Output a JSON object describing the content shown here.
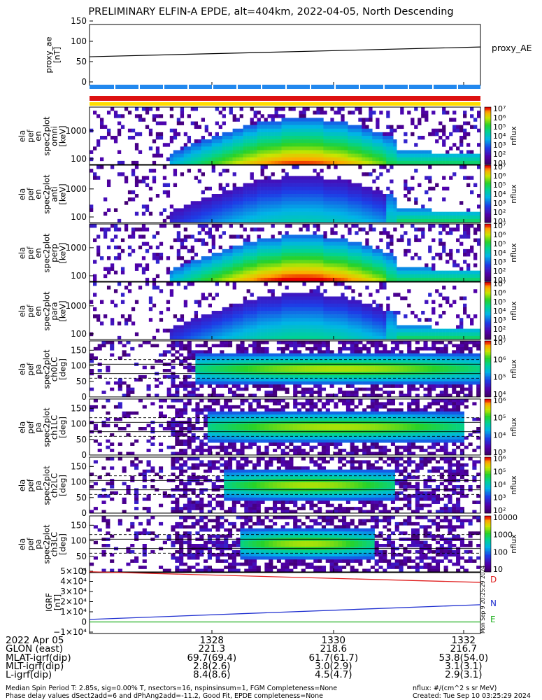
{
  "title": "PRELIMINARY ELFIN-A EPDE, alt=404km, 2022-04-05, North Descending",
  "proxy_panel": {
    "ylabel": [
      "proxy_ae",
      "[nT]"
    ],
    "legend": "proxy_AE",
    "yticks": [
      "150",
      "100",
      "50",
      "0"
    ]
  },
  "spectra_panels": [
    {
      "ylabel": [
        "ela",
        "pef",
        "en",
        "spec2plot",
        "omni",
        "[keV]"
      ],
      "yticks": [
        "1000",
        "100"
      ],
      "cbar_label": "nflux"
    },
    {
      "ylabel": [
        "ela",
        "pef",
        "en",
        "spec2plot",
        "anti",
        "[keV]"
      ],
      "yticks": [
        "1000",
        "100"
      ],
      "cbar_label": "nflux"
    },
    {
      "ylabel": [
        "ela",
        "pef",
        "en",
        "spec2plot",
        "perp",
        "[keV]"
      ],
      "yticks": [
        "1000",
        "100"
      ],
      "cbar_label": "nflux"
    },
    {
      "ylabel": [
        "ela",
        "pef",
        "en",
        "spec2plot",
        "para",
        "[keV]"
      ],
      "yticks": [
        "1000",
        "100"
      ],
      "cbar_label": "nflux"
    }
  ],
  "pa_panels": [
    {
      "ylabel": [
        "ela",
        "pef",
        "pa",
        "spec2plot",
        "ch0LC",
        "[deg]"
      ],
      "yticks": [
        "150",
        "100",
        "50",
        "0"
      ],
      "cbar_label": "nflux"
    },
    {
      "ylabel": [
        "ela",
        "pef",
        "pa",
        "spec2plot",
        "ch1LC",
        "[deg]"
      ],
      "yticks": [
        "150",
        "100",
        "50",
        "0"
      ],
      "cbar_label": "nflux"
    },
    {
      "ylabel": [
        "ela",
        "pef",
        "pa",
        "spec2plot",
        "ch2LC",
        "[deg]"
      ],
      "yticks": [
        "150",
        "100",
        "50",
        "0"
      ],
      "cbar_label": "nflux"
    },
    {
      "ylabel": [
        "ela",
        "pef",
        "pa",
        "spec2plot",
        "ch3LC",
        "[deg]"
      ],
      "yticks": [
        "150",
        "100",
        "50",
        "0"
      ],
      "cbar_label": "nflux"
    }
  ],
  "colorbar_ticks": {
    "spec": [
      "10⁷",
      "10⁶",
      "10⁵",
      "10⁴",
      "10³",
      "10²",
      "10¹"
    ],
    "pa0": [
      "10⁷",
      "10⁶",
      "10⁵",
      "10⁴"
    ],
    "pa1": [
      "10⁶",
      "10⁵",
      "10⁴",
      "10³"
    ],
    "pa2": [
      "10⁶",
      "10⁵",
      "10⁴",
      "10³",
      "10²"
    ],
    "pa3": [
      "10000",
      "1000",
      "100",
      "10"
    ]
  },
  "igrf_panel": {
    "ylabel": [
      "IGRF",
      "[nT]"
    ],
    "yticks": [
      "5×10⁴",
      "4×10⁴",
      "3×10⁴",
      "2×10⁴",
      "1×10⁴",
      "0",
      "−1×10⁴"
    ],
    "legend": [
      {
        "label": "D",
        "color": "#e02020"
      },
      {
        "label": "N",
        "color": "#2030d0"
      },
      {
        "label": "E",
        "color": "#20b020"
      }
    ]
  },
  "xticks": [
    "1328",
    "1330",
    "1332"
  ],
  "ephemeris_table": {
    "labels": [
      "2022 Apr 05",
      "GLON (east)",
      "MLAT-igrf(dip)",
      "MLT-igrf(dip)",
      "L-igrf(dip)"
    ],
    "columns": [
      [
        "1328",
        "221.3",
        "69.7(69.4)",
        "2.8(2.6)",
        "8.4(8.6)"
      ],
      [
        "1330",
        "218.6",
        "61.7(61.7)",
        "3.0(2.9)",
        "4.5(4.7)"
      ],
      [
        "1332",
        "216.7",
        "53.8(54.0)",
        "3.1(3.1)",
        "2.9(3.1)"
      ]
    ]
  },
  "footer": {
    "line1": "Median Spin Period T: 2.85s, sig=0.00% T, nsectors=16, nspinsinsum=1, FGM Completeness=None",
    "line2": "Phase delay values dSect2add=6 and dPhAng2add=-11.2, Good Fit, EPDE completeness=None",
    "right1": "nflux: #/(cm^2 s sr MeV)",
    "right2": "Created: Tue Sep 10 03:25:29 2024"
  },
  "vertical_stamp": "Mon Sep  9 20:25:29 2024",
  "chart_data": {
    "type": "heatmap",
    "title": "PRELIMINARY ELFIN-A EPDE, alt=404km, 2022-04-05, North Descending",
    "x_ticks": [
      "1328",
      "1330",
      "1332"
    ],
    "proxy_ae": {
      "y_range": [
        0,
        150
      ],
      "start": 62,
      "end": 86
    },
    "quality_bars": [
      "#2288ee",
      "#dd1111",
      "#ffdd00"
    ],
    "energy_axis": {
      "range_keV": [
        63,
        7000
      ],
      "scale": "log",
      "ticks": [
        100,
        1000
      ]
    },
    "pitch_angle_axis": {
      "range_deg": [
        0,
        180
      ],
      "ticks": [
        0,
        50,
        100,
        150
      ],
      "dashed_lines": [
        60,
        120
      ],
      "solid_lines": [
        75,
        105
      ]
    },
    "igrf": {
      "y_range": [
        -10000,
        50000
      ],
      "series": [
        {
          "name": "D",
          "start": 49500,
          "end": 39000
        },
        {
          "name": "N",
          "start": 2500,
          "end": 17000
        },
        {
          "name": "E",
          "start": 0,
          "end": 0
        }
      ]
    }
  }
}
